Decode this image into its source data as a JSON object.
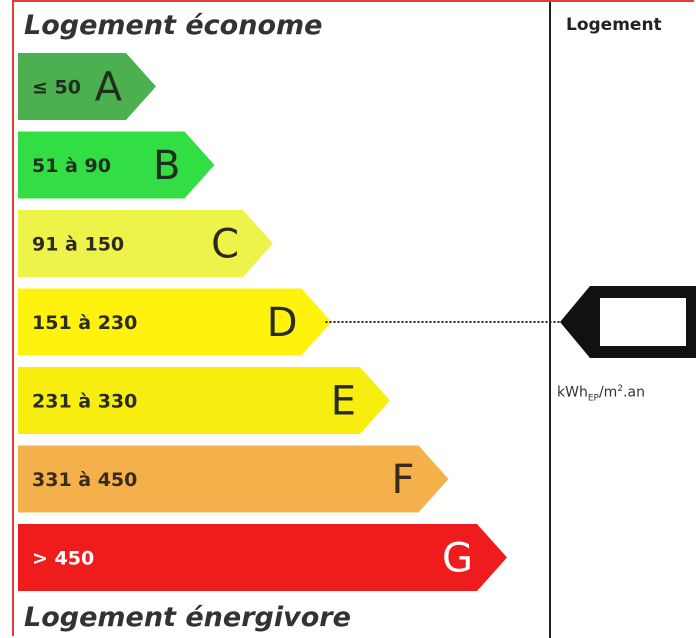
{
  "heading_top": "Logement économe",
  "heading_bottom": "Logement énergivore",
  "right_column_title": "Logement",
  "unit": {
    "main": "kWh",
    "sub": "EP",
    "rest": "/m",
    "sup": "2",
    "end": ".an"
  },
  "chart_data": {
    "type": "bar",
    "categories": [
      "A",
      "B",
      "C",
      "D",
      "E",
      "F",
      "G"
    ],
    "ranges": [
      "≤ 50",
      "51 à 90",
      "91 à 150",
      "151 à 230",
      "231 à 330",
      "331 à 450",
      "> 450"
    ],
    "colors": [
      "#4caf50",
      "#33dd44",
      "#eef34a",
      "#fff30e",
      "#f7ee10",
      "#f4b04a",
      "#ee1c1c"
    ],
    "range_text_colors": [
      "#1f2f1f",
      "#1f2f1f",
      "#2b2b1f",
      "#2b2b1f",
      "#2b2b1f",
      "#3a2a1a",
      "#ffffff"
    ],
    "letter_text_colors": [
      "#1f2f1f",
      "#1f2f1f",
      "#2b2b1f",
      "#2b2b1f",
      "#2b2b1f",
      "#3a2a1a",
      "#ffffff"
    ],
    "highlighted_class": "D",
    "value": ""
  }
}
